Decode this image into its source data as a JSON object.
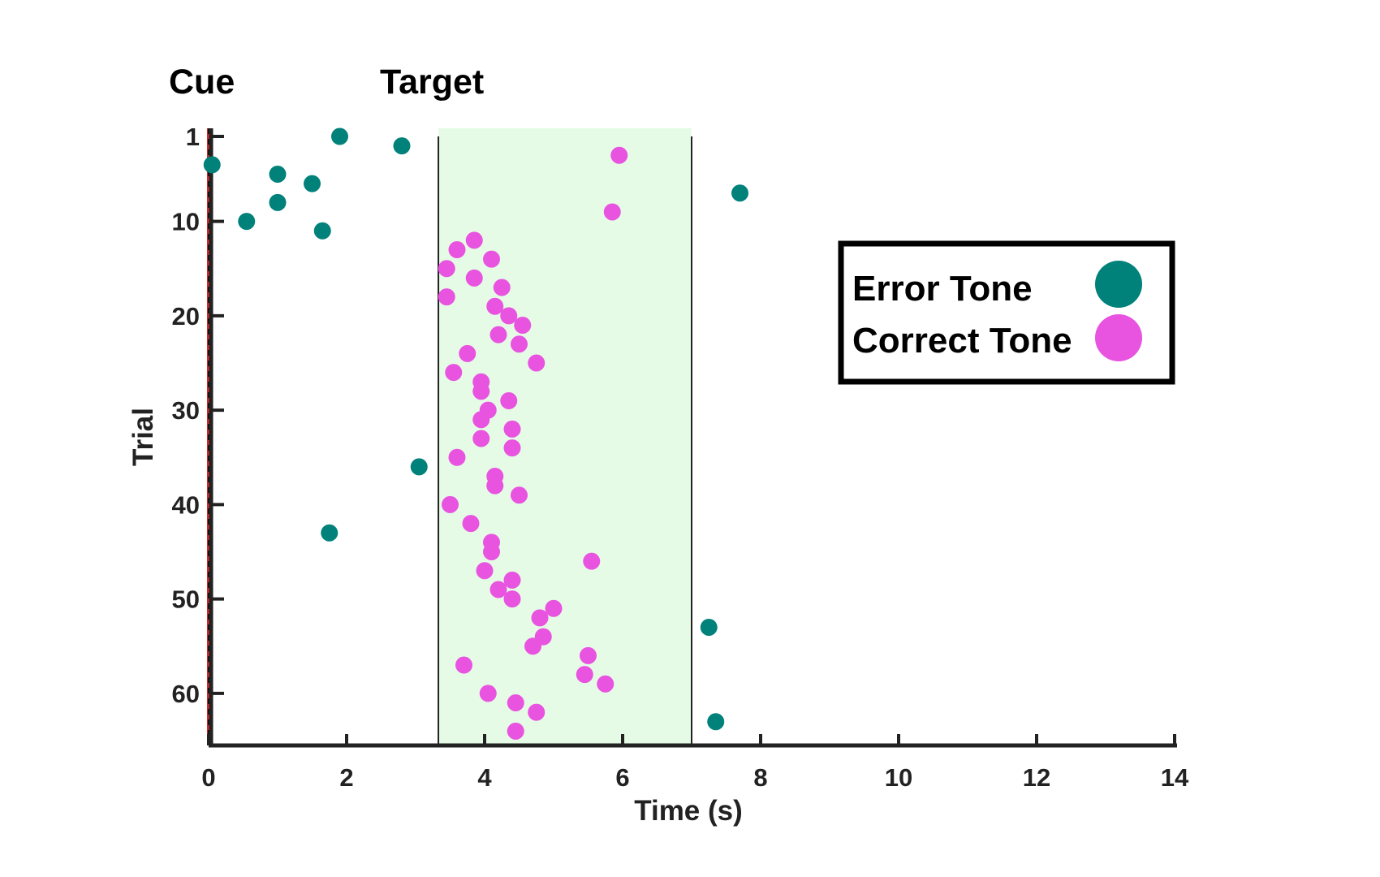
{
  "chart_data": {
    "type": "scatter",
    "xlabel": "Time (s)",
    "ylabel": "Trial",
    "xlim": [
      0,
      14
    ],
    "ylim": [
      1,
      65
    ],
    "y_inverted": true,
    "x_ticks": [
      "0",
      "2",
      "4",
      "6",
      "8",
      "10",
      "12",
      "14"
    ],
    "x_tick_values": [
      0,
      2,
      4,
      6,
      8,
      10,
      12,
      14
    ],
    "y_ticks": [
      "1",
      "10",
      "20",
      "30",
      "40",
      "50",
      "60"
    ],
    "y_tick_values": [
      1,
      10,
      20,
      30,
      40,
      50,
      60
    ],
    "grid": false,
    "legend_position": "right",
    "markers": [
      {
        "label": "Cue",
        "x": 0,
        "line_color": "#d62728"
      },
      {
        "label": "Target",
        "x": 3.33,
        "line_color": "#222222"
      }
    ],
    "target_window": {
      "x_start": 3.33,
      "x_end": 7.0,
      "fill_color": "#e6fbe6"
    },
    "series": [
      {
        "name": "Error Tone",
        "color": "#00817a",
        "points": [
          {
            "x": 0.05,
            "y": 4
          },
          {
            "x": 1.9,
            "y": 1
          },
          {
            "x": 2.8,
            "y": 2
          },
          {
            "x": 1.0,
            "y": 5
          },
          {
            "x": 1.5,
            "y": 6
          },
          {
            "x": 1.0,
            "y": 8
          },
          {
            "x": 7.7,
            "y": 7
          },
          {
            "x": 0.55,
            "y": 10
          },
          {
            "x": 1.65,
            "y": 11
          },
          {
            "x": 3.05,
            "y": 36
          },
          {
            "x": 1.75,
            "y": 43
          },
          {
            "x": 7.25,
            "y": 53
          },
          {
            "x": 7.35,
            "y": 63
          }
        ]
      },
      {
        "name": "Correct Tone",
        "color": "#e853e0",
        "points": [
          {
            "x": 5.95,
            "y": 3
          },
          {
            "x": 5.85,
            "y": 9
          },
          {
            "x": 3.85,
            "y": 12
          },
          {
            "x": 3.6,
            "y": 13
          },
          {
            "x": 4.1,
            "y": 14
          },
          {
            "x": 3.45,
            "y": 15
          },
          {
            "x": 3.85,
            "y": 16
          },
          {
            "x": 4.25,
            "y": 17
          },
          {
            "x": 3.45,
            "y": 18
          },
          {
            "x": 4.15,
            "y": 19
          },
          {
            "x": 4.35,
            "y": 20
          },
          {
            "x": 4.55,
            "y": 21
          },
          {
            "x": 4.2,
            "y": 22
          },
          {
            "x": 4.5,
            "y": 23
          },
          {
            "x": 3.75,
            "y": 24
          },
          {
            "x": 4.75,
            "y": 25
          },
          {
            "x": 3.55,
            "y": 26
          },
          {
            "x": 3.95,
            "y": 27
          },
          {
            "x": 3.95,
            "y": 28
          },
          {
            "x": 4.35,
            "y": 29
          },
          {
            "x": 4.05,
            "y": 30
          },
          {
            "x": 3.95,
            "y": 31
          },
          {
            "x": 4.4,
            "y": 32
          },
          {
            "x": 3.95,
            "y": 33
          },
          {
            "x": 4.4,
            "y": 34
          },
          {
            "x": 3.6,
            "y": 35
          },
          {
            "x": 4.15,
            "y": 37
          },
          {
            "x": 4.15,
            "y": 38
          },
          {
            "x": 4.5,
            "y": 39
          },
          {
            "x": 3.5,
            "y": 40
          },
          {
            "x": 3.8,
            "y": 42
          },
          {
            "x": 4.1,
            "y": 44
          },
          {
            "x": 4.1,
            "y": 45
          },
          {
            "x": 5.55,
            "y": 46
          },
          {
            "x": 4.0,
            "y": 47
          },
          {
            "x": 4.4,
            "y": 48
          },
          {
            "x": 4.2,
            "y": 49
          },
          {
            "x": 4.4,
            "y": 50
          },
          {
            "x": 5.0,
            "y": 51
          },
          {
            "x": 4.8,
            "y": 52
          },
          {
            "x": 4.85,
            "y": 54
          },
          {
            "x": 4.7,
            "y": 55
          },
          {
            "x": 5.5,
            "y": 56
          },
          {
            "x": 3.7,
            "y": 57
          },
          {
            "x": 5.45,
            "y": 58
          },
          {
            "x": 5.75,
            "y": 59
          },
          {
            "x": 4.05,
            "y": 60
          },
          {
            "x": 4.45,
            "y": 61
          },
          {
            "x": 4.75,
            "y": 62
          },
          {
            "x": 4.45,
            "y": 64
          }
        ]
      }
    ]
  }
}
